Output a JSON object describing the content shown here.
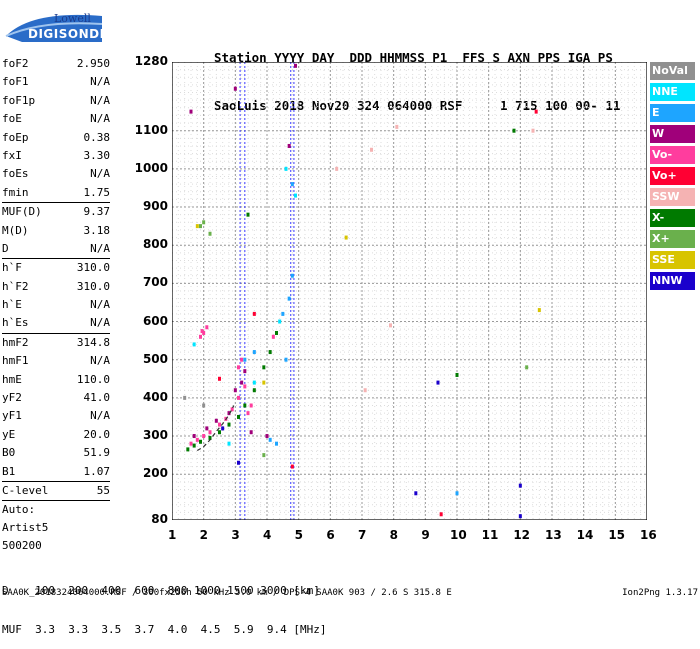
{
  "logo": {
    "line1": "Lowell",
    "line2": "DIGISONDE"
  },
  "header": {
    "line1": "Station YYYY DAY  DDD HHMMSS P1  FFS S AXN PPS IGA PS",
    "line2": "SaoLuis 2018 Nov20 324 064000 RSF     1 715 100 00- 11"
  },
  "params": [
    {
      "label": "foF2",
      "value": "2.950"
    },
    {
      "label": "foF1",
      "value": "N/A"
    },
    {
      "label": "foF1p",
      "value": "N/A"
    },
    {
      "label": "foE",
      "value": "N/A"
    },
    {
      "label": "foEp",
      "value": "0.38"
    },
    {
      "label": "fxI",
      "value": "3.30"
    },
    {
      "label": "foEs",
      "value": "N/A"
    },
    {
      "label": "fmin",
      "value": "1.75"
    },
    {
      "label": "MUF(D)",
      "value": "9.37"
    },
    {
      "label": "M(D)",
      "value": "3.18"
    },
    {
      "label": "D",
      "value": "N/A"
    },
    {
      "label": "h`F",
      "value": "310.0"
    },
    {
      "label": "h`F2",
      "value": "310.0"
    },
    {
      "label": "h`E",
      "value": "N/A"
    },
    {
      "label": "h`Es",
      "value": "N/A"
    },
    {
      "label": "hmF2",
      "value": "314.8"
    },
    {
      "label": "hmF1",
      "value": "N/A"
    },
    {
      "label": "hmE",
      "value": "110.0"
    },
    {
      "label": "yF2",
      "value": "41.0"
    },
    {
      "label": "yF1",
      "value": "N/A"
    },
    {
      "label": "yE",
      "value": "20.0"
    },
    {
      "label": "B0",
      "value": "51.9"
    },
    {
      "label": "B1",
      "value": "1.07"
    },
    {
      "label": "C-level",
      "value": "55"
    }
  ],
  "auto_lines": [
    "Auto:",
    "Artist5",
    "500200"
  ],
  "legend": [
    {
      "label": "NoVal",
      "color": "#909090"
    },
    {
      "label": "NNE",
      "color": "#00e5ff"
    },
    {
      "label": "E",
      "color": "#1ea5ff"
    },
    {
      "label": "W",
      "color": "#a0007a"
    },
    {
      "label": "Vo-",
      "color": "#ff3d9e"
    },
    {
      "label": "Vo+",
      "color": "#ff0033"
    },
    {
      "label": "SSW",
      "color": "#f5b3b3"
    },
    {
      "label": "X-",
      "color": "#007a00"
    },
    {
      "label": "X+",
      "color": "#6ab04c"
    },
    {
      "label": "SSE",
      "color": "#d8c400"
    },
    {
      "label": "NNW",
      "color": "#1a00cc"
    }
  ],
  "muf_table": {
    "line1": "D    100  200  400  600  800 1000 1500 3000 [km]",
    "line2": "MUF  3.3  3.3  3.5  3.7  4.0  4.5  5.9  9.4 [MHz]"
  },
  "footer": {
    "left": "SAA0K_2018324064000.RSF / 300fx256h 50 kHz 5.0 km / DPS-4 SAA0K 903 / 2.6 S 315.8 E",
    "right": "Ion2Png 1.3.17"
  },
  "chart_data": {
    "type": "scatter",
    "x_ticks": [
      "1",
      "2",
      "3",
      "4",
      "5",
      "6",
      "7",
      "8",
      "9",
      "10",
      "11",
      "12",
      "13",
      "14",
      "15",
      "16"
    ],
    "y_ticks": [
      "80",
      "200",
      "300",
      "400",
      "500",
      "600",
      "700",
      "800",
      "900",
      "1000",
      "1100",
      "1280"
    ],
    "xlim": [
      1,
      16
    ],
    "ylim": [
      80,
      1280
    ],
    "grid": true,
    "vertical_markers_mhz": [
      3.15,
      3.3,
      4.75,
      4.85
    ],
    "trace_f": [
      1.8,
      2.0,
      2.2,
      2.4,
      2.6,
      2.8,
      2.95
    ],
    "trace_h": [
      262,
      272,
      290,
      312,
      332,
      355,
      380
    ],
    "series": [
      {
        "name": "Vo-",
        "points": [
          [
            1.6,
            280
          ],
          [
            1.8,
            290
          ],
          [
            2.0,
            300
          ],
          [
            2.2,
            310
          ],
          [
            2.5,
            330
          ],
          [
            2.7,
            345
          ],
          [
            2.9,
            370
          ],
          [
            3.1,
            400
          ],
          [
            3.3,
            430
          ],
          [
            1.9,
            560
          ],
          [
            2.0,
            570
          ],
          [
            3.1,
            480
          ],
          [
            3.2,
            500
          ],
          [
            4.2,
            560
          ],
          [
            1.95,
            575
          ],
          [
            2.1,
            585
          ],
          [
            3.4,
            360
          ],
          [
            3.5,
            380
          ]
        ]
      },
      {
        "name": "W",
        "points": [
          [
            1.7,
            300
          ],
          [
            2.1,
            320
          ],
          [
            2.4,
            340
          ],
          [
            2.8,
            360
          ],
          [
            3.0,
            420
          ],
          [
            3.2,
            440
          ],
          [
            3.3,
            470
          ],
          [
            3.5,
            310
          ],
          [
            4.7,
            1060
          ],
          [
            3.0,
            1210
          ],
          [
            4.9,
            1270
          ],
          [
            1.6,
            1150
          ],
          [
            4.0,
            300
          ]
        ]
      },
      {
        "name": "X-",
        "points": [
          [
            1.5,
            265
          ],
          [
            1.7,
            275
          ],
          [
            1.9,
            285
          ],
          [
            2.2,
            295
          ],
          [
            2.5,
            310
          ],
          [
            2.8,
            330
          ],
          [
            3.1,
            350
          ],
          [
            3.3,
            380
          ],
          [
            3.6,
            420
          ],
          [
            3.9,
            480
          ],
          [
            4.1,
            520
          ],
          [
            4.3,
            570
          ],
          [
            10.0,
            460
          ],
          [
            11.8,
            1100
          ],
          [
            3.4,
            880
          ]
        ]
      },
      {
        "name": "E",
        "points": [
          [
            3.3,
            500
          ],
          [
            3.6,
            520
          ],
          [
            4.5,
            620
          ],
          [
            4.7,
            660
          ],
          [
            4.8,
            720
          ],
          [
            4.1,
            290
          ],
          [
            4.6,
            500
          ],
          [
            10.0,
            150
          ],
          [
            4.3,
            280
          ],
          [
            4.8,
            960
          ]
        ]
      },
      {
        "name": "NNE",
        "points": [
          [
            3.6,
            440
          ],
          [
            4.4,
            600
          ],
          [
            4.6,
            1000
          ],
          [
            4.9,
            930
          ],
          [
            2.8,
            280
          ],
          [
            1.7,
            540
          ]
        ]
      },
      {
        "name": "SSW",
        "points": [
          [
            6.2,
            1000
          ],
          [
            8.1,
            1110
          ],
          [
            7.9,
            590
          ],
          [
            7.1,
            420
          ],
          [
            12.4,
            1100
          ],
          [
            7.3,
            1050
          ]
        ]
      },
      {
        "name": "X+",
        "points": [
          [
            1.9,
            850
          ],
          [
            2.2,
            830
          ],
          [
            2.0,
            860
          ],
          [
            3.9,
            250
          ],
          [
            12.2,
            480
          ]
        ]
      },
      {
        "name": "SSE",
        "points": [
          [
            1.8,
            850
          ],
          [
            6.5,
            820
          ],
          [
            3.9,
            440
          ],
          [
            12.6,
            630
          ]
        ]
      },
      {
        "name": "NNW",
        "points": [
          [
            2.6,
            320
          ],
          [
            12.0,
            170
          ],
          [
            12.0,
            90
          ],
          [
            3.1,
            230
          ],
          [
            8.7,
            150
          ],
          [
            9.4,
            440
          ]
        ]
      },
      {
        "name": "Vo+",
        "points": [
          [
            2.5,
            450
          ],
          [
            4.8,
            220
          ],
          [
            3.6,
            620
          ],
          [
            12.5,
            1150
          ],
          [
            9.5,
            95
          ]
        ]
      },
      {
        "name": "NoVal",
        "points": [
          [
            1.4,
            400
          ],
          [
            2.0,
            380
          ]
        ]
      }
    ]
  }
}
